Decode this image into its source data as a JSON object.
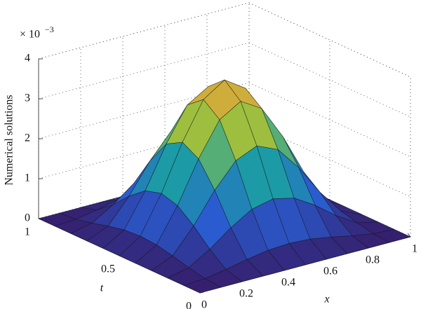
{
  "chart_data": {
    "type": "surface",
    "zlabel": "Numerical solutions",
    "xlabel": "x",
    "tlabel": "t",
    "z_scale_base": "× 10",
    "z_scale_exponent": "−3",
    "x": [
      0,
      0.1,
      0.2,
      0.3,
      0.4,
      0.5,
      0.6,
      0.7,
      0.8,
      0.9,
      1
    ],
    "t": [
      0,
      0.1,
      0.2,
      0.3,
      0.4,
      0.5,
      0.6,
      0.7,
      0.8,
      0.9,
      1
    ],
    "z": [
      [
        0,
        0,
        0,
        0,
        0,
        0,
        0,
        0,
        0,
        0,
        0
      ],
      [
        0,
        0.03,
        0.12,
        0.23,
        0.32,
        0.35,
        0.32,
        0.23,
        0.12,
        0.03,
        0
      ],
      [
        0,
        0.12,
        0.44,
        0.84,
        1.16,
        1.28,
        1.16,
        0.84,
        0.44,
        0.12,
        0
      ],
      [
        0,
        0.23,
        0.84,
        1.59,
        2.19,
        2.42,
        2.19,
        1.59,
        0.84,
        0.23,
        0
      ],
      [
        0,
        0.32,
        1.16,
        2.19,
        3.03,
        3.35,
        3.03,
        2.19,
        1.16,
        0.32,
        0
      ],
      [
        0,
        0.35,
        1.28,
        2.42,
        3.35,
        3.7,
        3.35,
        2.42,
        1.28,
        0.35,
        0
      ],
      [
        0,
        0.32,
        1.16,
        2.19,
        3.03,
        3.35,
        3.03,
        2.19,
        1.16,
        0.32,
        0
      ],
      [
        0,
        0.23,
        0.84,
        1.59,
        2.19,
        2.42,
        2.19,
        1.59,
        0.84,
        0.23,
        0
      ],
      [
        0,
        0.12,
        0.44,
        0.84,
        1.16,
        1.28,
        1.16,
        0.84,
        0.44,
        0.12,
        0
      ],
      [
        0,
        0.03,
        0.12,
        0.23,
        0.32,
        0.35,
        0.32,
        0.23,
        0.12,
        0.03,
        0
      ],
      [
        0,
        0,
        0,
        0,
        0,
        0,
        0,
        0,
        0,
        0,
        0
      ]
    ],
    "xlim": [
      0,
      1
    ],
    "tlim": [
      0,
      1
    ],
    "zlim": [
      0,
      4
    ],
    "xticks": [
      0,
      0.2,
      0.4,
      0.6,
      0.8,
      1
    ],
    "tticks": [
      0,
      0.5,
      1
    ],
    "zticks": [
      0,
      1,
      2,
      3,
      4
    ],
    "grid": true,
    "colormap": [
      "#35206f",
      "#2a5cd0",
      "#1aa2a2",
      "#a2bf3c",
      "#eaa23a"
    ]
  }
}
